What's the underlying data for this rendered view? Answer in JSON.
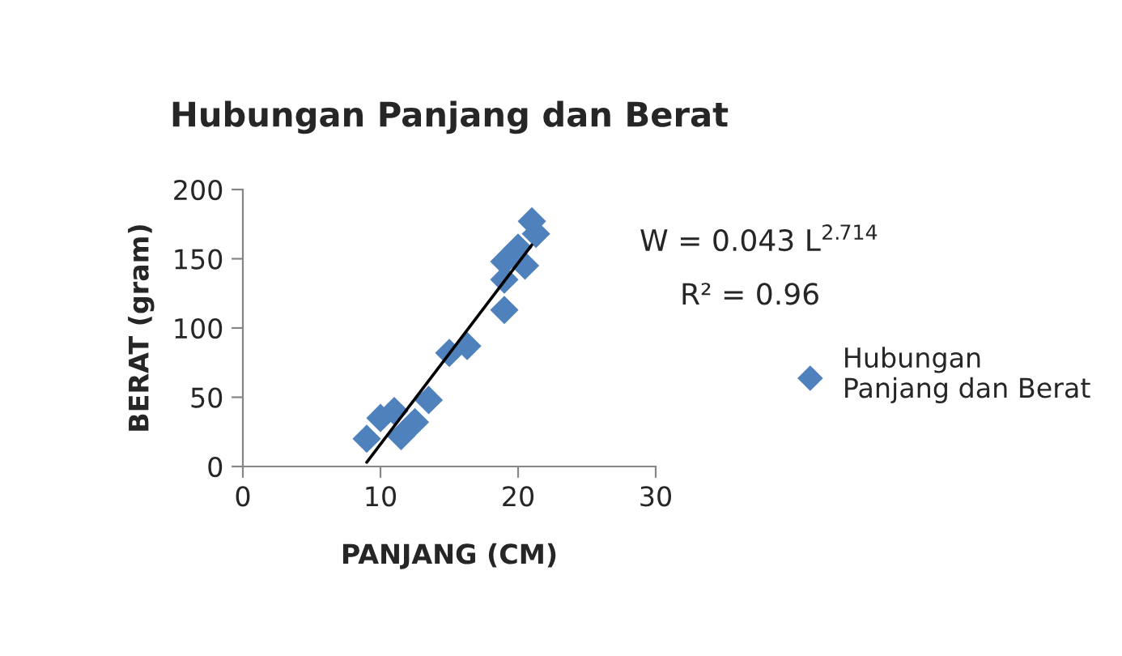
{
  "chart_data": {
    "type": "scatter",
    "title": "Hubungan Panjang dan Berat",
    "xlabel": "PANJANG (CM)",
    "ylabel": "BERAT (gram)",
    "xlim": [
      0,
      30
    ],
    "xticks": [
      0,
      10,
      20,
      30
    ],
    "ylim": [
      0,
      200
    ],
    "yticks": [
      0,
      50,
      100,
      150,
      200
    ],
    "grid": false,
    "legend": "right",
    "annotations": [
      "W = 0.043 L$^{2.714}$",
      "R² = 0.96"
    ],
    "series": [
      {
        "name": "Hubungan Panjang dan Berat",
        "color": "#4f81bd",
        "marker": "diamond",
        "x": [
          9,
          10,
          11,
          11.5,
          12.5,
          13.5,
          15,
          16.3,
          19,
          19,
          19,
          20.5,
          20,
          21.3,
          21
        ],
        "values": [
          20,
          35,
          40,
          22,
          32,
          48,
          82,
          87,
          113,
          135,
          148,
          145,
          158,
          168,
          177
        ]
      },
      {
        "color": "#000000",
        "type": "line",
        "x": [
          9,
          21
        ],
        "values": [
          3,
          160
        ]
      }
    ]
  }
}
